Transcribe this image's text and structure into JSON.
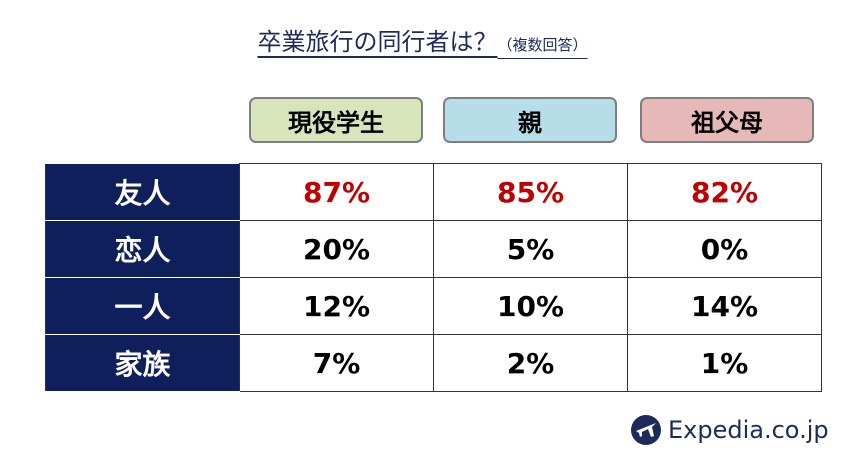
{
  "header": {
    "title": "卒業旅行の同行者は？",
    "subtitle": "（複数回答）"
  },
  "table": {
    "columns": [
      "現役学生",
      "親",
      "祖父母"
    ],
    "rows": [
      [
        "友人",
        "87%",
        "85%",
        "82%"
      ],
      [
        "恋人",
        "20%",
        "5%",
        "0%"
      ],
      [
        "一人",
        "12%",
        "10%",
        "14%"
      ],
      [
        "家族",
        "7%",
        "2%",
        "1%"
      ]
    ]
  },
  "logo": {
    "text": "Expedia.co.jp"
  }
}
